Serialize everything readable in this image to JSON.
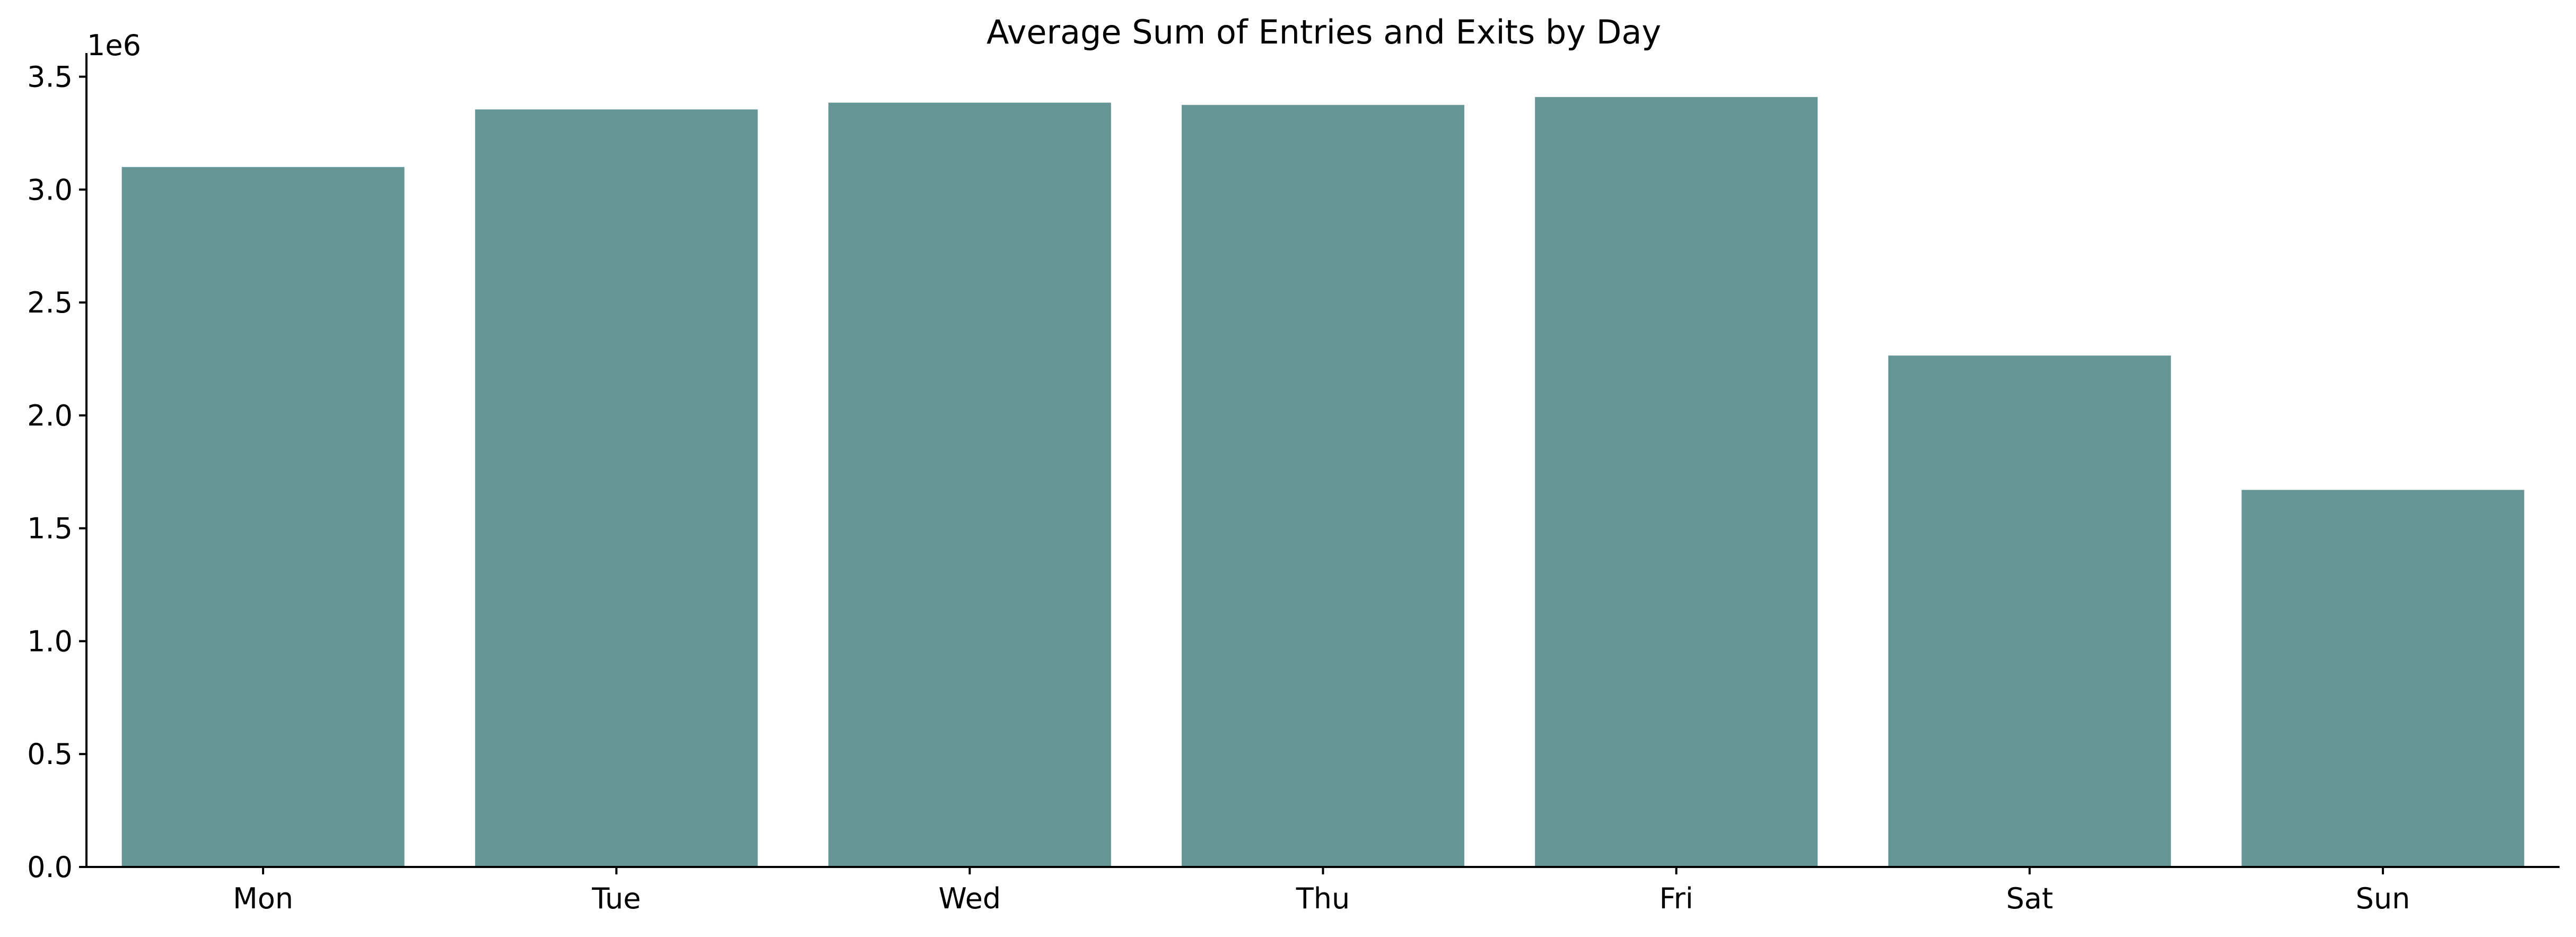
{
  "chart_data": {
    "type": "bar",
    "title": "Average Sum of Entries and Exits by Day",
    "xlabel": "",
    "ylabel": "",
    "categories": [
      "Mon",
      "Tue",
      "Wed",
      "Thu",
      "Fri",
      "Sat",
      "Sun"
    ],
    "values": [
      3100000,
      3355000,
      3385000,
      3375000,
      3410000,
      2265000,
      1670000
    ],
    "ylim": [
      0,
      3600000
    ],
    "yticks": [
      0,
      500000,
      1000000,
      1500000,
      2000000,
      2500000,
      3000000,
      3500000
    ],
    "ytick_labels": [
      "0.0",
      "0.5",
      "1.0",
      "1.5",
      "2.0",
      "2.5",
      "3.0",
      "3.5"
    ],
    "y_offset_label": "1e6",
    "bar_color": "#669595",
    "grid": false,
    "legend": "none"
  }
}
